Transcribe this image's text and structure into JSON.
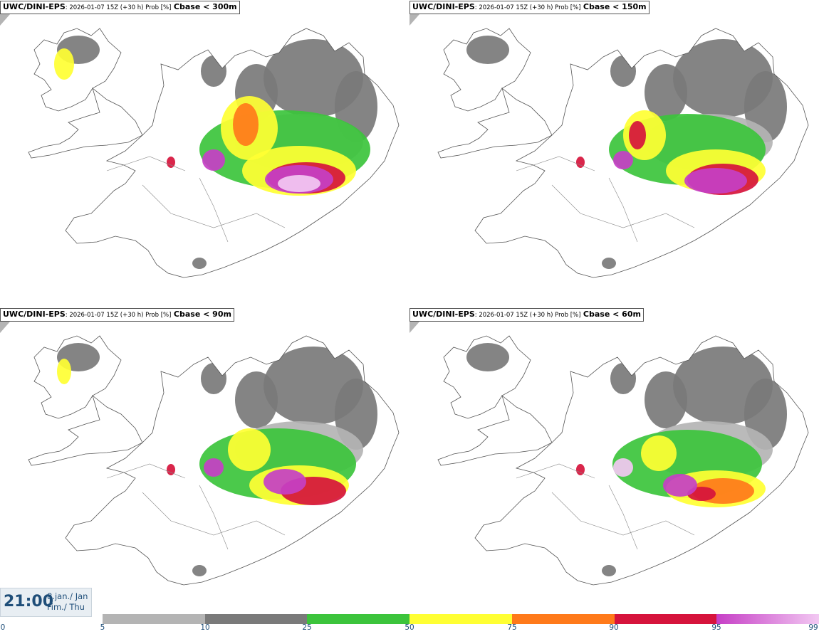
{
  "panels": [
    {
      "src": "UWC/DINI-EPS",
      "meta": ": 2026-01-07 15Z (+30 h) Prob [%]",
      "variable": "Cbase < 300m"
    },
    {
      "src": "UWC/DINI-EPS",
      "meta": ": 2026-01-07 15Z (+30 h) Prob [%]",
      "variable": "Cbase < 150m"
    },
    {
      "src": "UWC/DINI-EPS",
      "meta": ": 2026-01-07 15Z (+30 h) Prob [%]",
      "variable": "Cbase < 90m"
    },
    {
      "src": "UWC/DINI-EPS",
      "meta": ": 2026-01-07 15Z (+30 h) Prob [%]",
      "variable": "Cbase < 60m"
    }
  ],
  "valid_time": {
    "time": "21:00",
    "date_line1": "8.jan./ Jan",
    "date_line2": "Fim./ Thu"
  },
  "colorbar": {
    "ticks": [
      "0",
      "5",
      "10",
      "25",
      "50",
      "75",
      "90",
      "95",
      "99"
    ],
    "colors": [
      "#b4b4b4",
      "#7a7a7a",
      "#3cc43c",
      "#ffff33",
      "#ff7a1a",
      "#d6143c",
      "gradient-magenta-pink"
    ]
  },
  "colors": {
    "light_gray": "#b4b4b4",
    "dark_gray": "#7a7a7a",
    "green": "#3cc43c",
    "yellow": "#ffff33",
    "orange": "#ff7a1a",
    "red": "#d6143c",
    "magenta": "#c63fc6",
    "pink": "#f2c8f2",
    "label_blue": "#1f4e79"
  }
}
